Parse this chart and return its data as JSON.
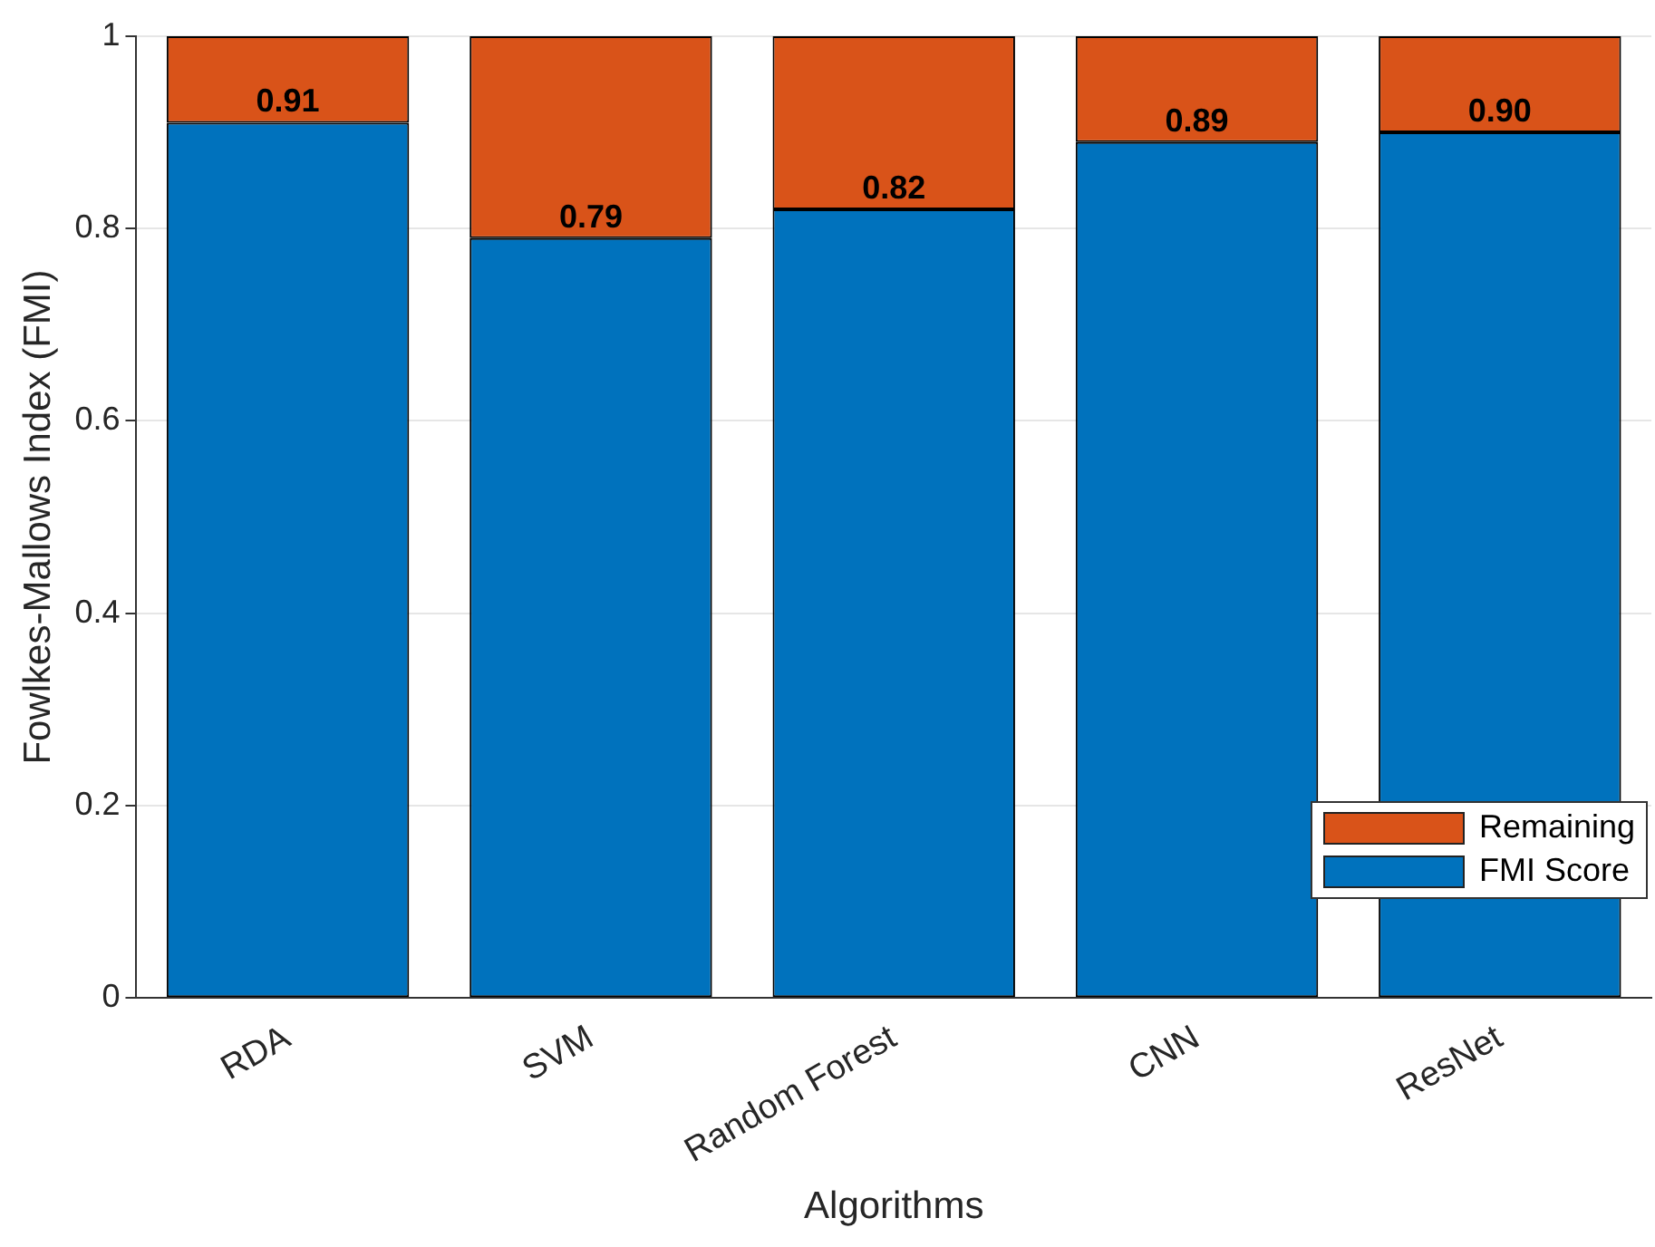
{
  "chart_data": {
    "type": "bar",
    "stacked": true,
    "xlabel": "Algorithms",
    "ylabel": "Fowlkes-Mallows Index (FMI)",
    "categories": [
      "RDA",
      "SVM",
      "Random Forest",
      "CNN",
      "ResNet"
    ],
    "series": [
      {
        "name": "FMI Score",
        "color": "#0072bd",
        "values": [
          0.91,
          0.79,
          0.82,
          0.89,
          0.9
        ],
        "value_labels": [
          "0.91",
          "0.79",
          "0.82",
          "0.89",
          "0.90"
        ]
      },
      {
        "name": "Remaining",
        "color": "#d95319",
        "values": [
          0.09,
          0.21,
          0.18,
          0.11,
          0.1
        ]
      }
    ],
    "ylim": [
      0,
      1
    ],
    "yticks": [
      0,
      0.2,
      0.4,
      0.6,
      0.8,
      1
    ],
    "grid": "y",
    "legend": "bottom right"
  }
}
